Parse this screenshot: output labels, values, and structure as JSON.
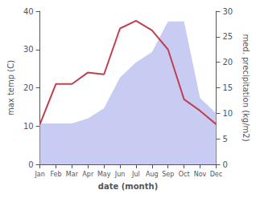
{
  "chart_data": {
    "type": "line",
    "categories": [
      "Jan",
      "Feb",
      "Mar",
      "Apr",
      "May",
      "Jun",
      "Jul",
      "Aug",
      "Sep",
      "Oct",
      "Nov",
      "Dec"
    ],
    "series": [
      {
        "type": "area",
        "axis": "y2",
        "color": "#c8ccf2",
        "values": [
          8,
          8,
          8,
          9,
          11,
          17,
          20,
          22,
          28,
          28,
          13,
          10
        ]
      },
      {
        "type": "line",
        "color": "#c04050",
        "values": [
          10.5,
          21.0,
          21.0,
          24.0,
          23.5,
          35.5,
          37.5,
          35.0,
          30.0,
          17.0,
          14.0,
          10.5
        ]
      }
    ],
    "xlabel": "date (month)",
    "ylabel": "max temp (C)",
    "y2label": "med. precipitation (kg/m2)",
    "ylim": [
      0,
      40
    ],
    "yticks": [
      0,
      10,
      20,
      30,
      40
    ],
    "y2lim": [
      0,
      30
    ],
    "y2ticks": [
      0,
      5,
      10,
      15,
      20,
      25,
      30
    ],
    "grid": false
  }
}
